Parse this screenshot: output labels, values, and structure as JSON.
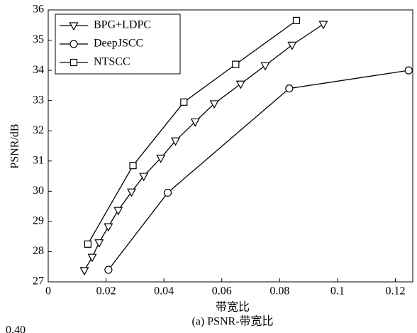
{
  "chart_data": {
    "type": "line",
    "xlabel": "带宽比",
    "ylabel": "PSNR/dB",
    "caption": "(a) PSNR-带宽比",
    "fragment": "0.40",
    "xlim": [
      0,
      0.126
    ],
    "ylim": [
      27,
      36
    ],
    "xticks": [
      0,
      0.02,
      0.04,
      0.06,
      0.08,
      0.1,
      0.12
    ],
    "yticks": [
      27,
      28,
      29,
      30,
      31,
      32,
      33,
      34,
      35,
      36
    ],
    "legend": "upper left",
    "series": [
      {
        "name": "BPG+LDPC",
        "color": "#000000",
        "marker": "triangle-down",
        "x": [
          0.0125,
          0.0152,
          0.0176,
          0.0208,
          0.0242,
          0.0288,
          0.033,
          0.0389,
          0.044,
          0.0508,
          0.0574,
          0.0665,
          0.075,
          0.0843,
          0.0951
        ],
        "values": [
          27.38,
          27.82,
          28.3,
          28.83,
          29.37,
          29.98,
          30.5,
          31.1,
          31.67,
          32.3,
          32.9,
          33.55,
          34.16,
          34.84,
          35.53
        ]
      },
      {
        "name": "DeepJSCC",
        "color": "#000000",
        "marker": "circle",
        "x": [
          0.0208,
          0.0413,
          0.0833,
          0.1246
        ],
        "values": [
          27.4,
          29.95,
          33.4,
          34.0
        ]
      },
      {
        "name": "NTSCC",
        "color": "#000000",
        "marker": "square",
        "x": [
          0.0137,
          0.0293,
          0.0469,
          0.0648,
          0.0858
        ],
        "values": [
          28.25,
          30.85,
          32.95,
          34.2,
          35.65
        ]
      }
    ]
  }
}
